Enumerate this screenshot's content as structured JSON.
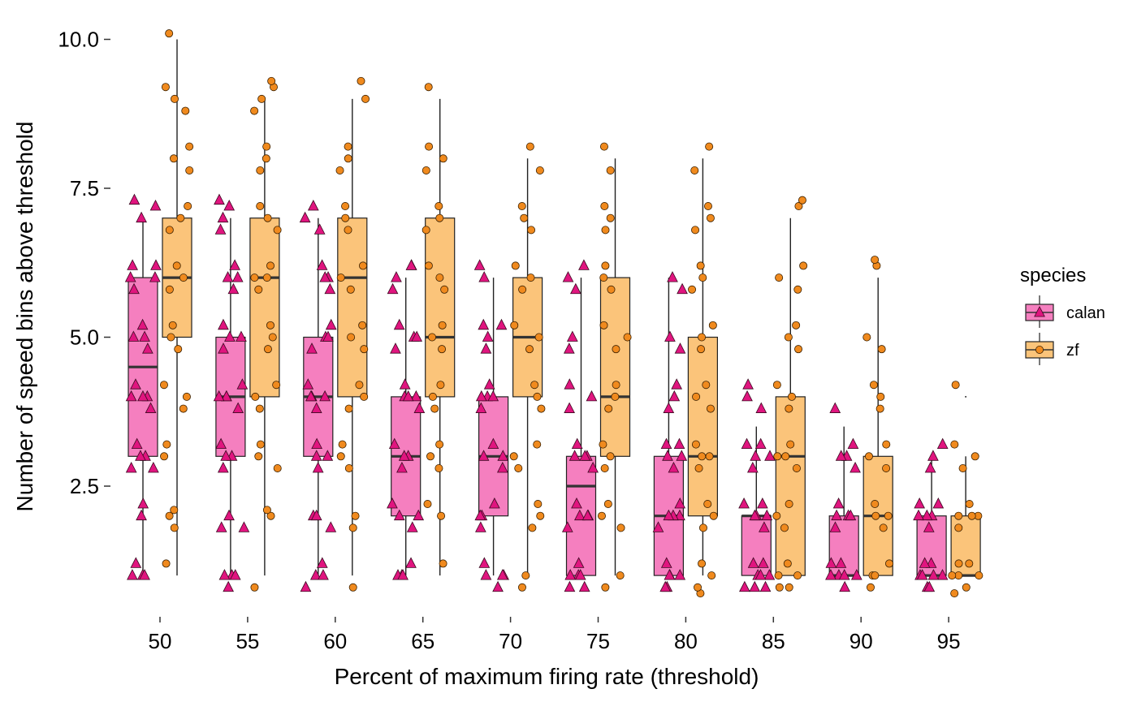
{
  "chart_data": {
    "type": "box",
    "xlabel": "Percent of maximum firing rate (threshold)",
    "ylabel": "Number of speed bins above threshold",
    "categories": [
      "50",
      "55",
      "60",
      "65",
      "70",
      "75",
      "80",
      "85",
      "90",
      "95"
    ],
    "y_ticks": [
      "2.5",
      "5.0",
      "7.5",
      "10.0"
    ],
    "y_tick_values": [
      2.5,
      5.0,
      7.5,
      10.0
    ],
    "ylim": [
      0.6,
      10.4
    ],
    "legend_title": "species",
    "legend_position": "right",
    "grid": false,
    "series": [
      {
        "name": "calan",
        "marker": "triangle",
        "fill": "#f57fbf",
        "point_color": "#e0157f",
        "boxes": [
          {
            "whisker_low": 1,
            "q1": 3,
            "median": 4.5,
            "q3": 6,
            "whisker_high": 7
          },
          {
            "whisker_low": 1,
            "q1": 3,
            "median": 4,
            "q3": 5,
            "whisker_high": 7
          },
          {
            "whisker_low": 1,
            "q1": 3,
            "median": 4,
            "q3": 5,
            "whisker_high": 7
          },
          {
            "whisker_low": 1,
            "q1": 2,
            "median": 3,
            "q3": 4,
            "whisker_high": 6
          },
          {
            "whisker_low": 1,
            "q1": 2,
            "median": 3,
            "q3": 4,
            "whisker_high": 6
          },
          {
            "whisker_low": 1,
            "q1": 1,
            "median": 2.5,
            "q3": 3,
            "whisker_high": 6
          },
          {
            "whisker_low": 1,
            "q1": 1,
            "median": 2,
            "q3": 3,
            "whisker_high": 6
          },
          {
            "whisker_low": 1,
            "q1": 1,
            "median": 2,
            "q3": 2,
            "whisker_high": 3.5
          },
          {
            "whisker_low": 1,
            "q1": 1,
            "median": 1,
            "q3": 2,
            "whisker_high": 3.5
          },
          {
            "whisker_low": 1,
            "q1": 1,
            "median": 1,
            "q3": 2,
            "whisker_high": 3
          }
        ],
        "points": [
          [
            1,
            1,
            1,
            1.2,
            2,
            2.2,
            2.8,
            2.8,
            3,
            3,
            3.2,
            3.8,
            4,
            4,
            4,
            4.2,
            4.8,
            5,
            5,
            5.2,
            5.8,
            6,
            6,
            6.2,
            6.2,
            7,
            7.2,
            7.3
          ],
          [
            0.8,
            1,
            1,
            1,
            1.8,
            1.8,
            2,
            2.8,
            3,
            3,
            3.2,
            3.8,
            4,
            4,
            4,
            4.2,
            4.8,
            5,
            5,
            5.2,
            5.8,
            6,
            6,
            6.2,
            6.8,
            7,
            7.2,
            7.3
          ],
          [
            0.8,
            1,
            1,
            1.2,
            1.8,
            2,
            2,
            2.8,
            3,
            3,
            3.2,
            3.8,
            4,
            4,
            4,
            4.2,
            4.8,
            5,
            5,
            5.2,
            5.8,
            6,
            6,
            6.2,
            6.8,
            7,
            7.2
          ],
          [
            1,
            1,
            1,
            1.2,
            1.8,
            2,
            2,
            2.2,
            2.8,
            3,
            3,
            3.2,
            3.8,
            4,
            4,
            4,
            4.2,
            4.8,
            5,
            5,
            5.2,
            5.8,
            6,
            6.2,
            6.2
          ],
          [
            0.8,
            1,
            1,
            1,
            1.2,
            1.8,
            2,
            2,
            2.2,
            2.8,
            3,
            3,
            3.2,
            3.8,
            4,
            4,
            4,
            4.2,
            4.8,
            5,
            5.2,
            5.2,
            6,
            6.2
          ],
          [
            0.8,
            0.8,
            1,
            1,
            1,
            1.2,
            1.8,
            2,
            2,
            2,
            2.2,
            2.8,
            3,
            3,
            3,
            3.2,
            3.8,
            4,
            4.2,
            4.8,
            5,
            5.8,
            6,
            6.2
          ],
          [
            0.8,
            0.8,
            1,
            1,
            1,
            1.2,
            1.8,
            2,
            2,
            2,
            2.2,
            2.8,
            3,
            3,
            3.2,
            3.2,
            3.8,
            4,
            4.2,
            4.8,
            5,
            5.8,
            6
          ],
          [
            0.8,
            0.8,
            0.8,
            1,
            1,
            1,
            1.2,
            1.2,
            1.8,
            2,
            2,
            2,
            2.2,
            2.2,
            2.8,
            3,
            3,
            3.2,
            3.2,
            3.8,
            4,
            4.2
          ],
          [
            0.8,
            1,
            1,
            1,
            1,
            1.2,
            1.2,
            1.8,
            2,
            2,
            2,
            2.2,
            2.8,
            3,
            3,
            3.2,
            3.8
          ],
          [
            0.8,
            0.8,
            1,
            1,
            1,
            1,
            1.2,
            1.2,
            1.8,
            2,
            2,
            2,
            2.2,
            2.2,
            2.8,
            3,
            3.2
          ]
        ]
      },
      {
        "name": "zf",
        "marker": "circle",
        "fill": "#fbc47a",
        "point_color": "#f08a1e",
        "boxes": [
          {
            "whisker_low": 1,
            "q1": 5,
            "median": 6,
            "q3": 7,
            "whisker_high": 10
          },
          {
            "whisker_low": 1,
            "q1": 4,
            "median": 6,
            "q3": 7,
            "whisker_high": 9
          },
          {
            "whisker_low": 1,
            "q1": 4,
            "median": 6,
            "q3": 7,
            "whisker_high": 9
          },
          {
            "whisker_low": 1,
            "q1": 4,
            "median": 5,
            "q3": 7,
            "whisker_high": 9
          },
          {
            "whisker_low": 1,
            "q1": 4,
            "median": 5,
            "q3": 6,
            "whisker_high": 8
          },
          {
            "whisker_low": 1,
            "q1": 3,
            "median": 4,
            "q3": 6,
            "whisker_high": 8
          },
          {
            "whisker_low": 1,
            "q1": 2,
            "median": 3,
            "q3": 5,
            "whisker_high": 8
          },
          {
            "whisker_low": 1,
            "q1": 1,
            "median": 3,
            "q3": 4,
            "whisker_high": 7
          },
          {
            "whisker_low": 1,
            "q1": 1,
            "median": 2,
            "q3": 3,
            "whisker_high": 6
          },
          {
            "whisker_low": 1,
            "q1": 1,
            "median": 1,
            "q3": 2,
            "whisker_high": 3
          }
        ],
        "outliers": [
          [],
          [],
          [],
          [],
          [],
          [],
          [],
          [],
          [],
          [
            4.0
          ]
        ],
        "points": [
          [
            1.2,
            1.8,
            2,
            2.1,
            3,
            3.2,
            3.8,
            4,
            4.2,
            4.8,
            5,
            5.2,
            5.8,
            6,
            6.2,
            6.8,
            7,
            7.2,
            7.8,
            8,
            8.2,
            8.8,
            9,
            9.2,
            10.1
          ],
          [
            0.8,
            2,
            2.1,
            2.8,
            3,
            3.2,
            3.8,
            4,
            4.2,
            4.8,
            5,
            5.2,
            5.8,
            6,
            6,
            6.2,
            6.8,
            7,
            7.2,
            7.8,
            8,
            8.2,
            8.8,
            9,
            9.2,
            9.3
          ],
          [
            0.8,
            1.8,
            2,
            2.8,
            3,
            3.2,
            3.8,
            4,
            4.2,
            4.8,
            5,
            5.2,
            5.8,
            6,
            6.2,
            6.8,
            7,
            7.2,
            7.8,
            8,
            8.2,
            9,
            9.3
          ],
          [
            1.2,
            2,
            2.2,
            2.8,
            3,
            3.2,
            3.8,
            4,
            4.2,
            4.8,
            5,
            5.2,
            5.8,
            6,
            6.2,
            6.8,
            7,
            7.2,
            7.8,
            8,
            8.2,
            9.2
          ],
          [
            0.8,
            1,
            1.8,
            2,
            2.2,
            2.8,
            3,
            3.2,
            3.8,
            4,
            4.2,
            4.8,
            5,
            5.2,
            5.8,
            6,
            6.2,
            6.8,
            7,
            7.2,
            7.8,
            8.2
          ],
          [
            0.8,
            1,
            1.8,
            2,
            2.2,
            2.8,
            3,
            3.2,
            3.8,
            4,
            4.2,
            4.8,
            5,
            5.2,
            5.8,
            6,
            6.2,
            6.8,
            7,
            7.2,
            7.8,
            8.2
          ],
          [
            0.7,
            0.8,
            1,
            1.2,
            1.8,
            2,
            2.2,
            2.8,
            3,
            3,
            3.2,
            3.8,
            4,
            4.2,
            4.8,
            5,
            5.2,
            5.8,
            6,
            6.2,
            6.8,
            7,
            7.2,
            7.8,
            8.2
          ],
          [
            0.8,
            0.8,
            1,
            1,
            1.2,
            1.8,
            2,
            2.2,
            2.8,
            3,
            3,
            3.2,
            3.8,
            4,
            4.2,
            4.8,
            5,
            5.2,
            5.8,
            6,
            6.2,
            7.2,
            7.3
          ],
          [
            0.8,
            1,
            1,
            1.2,
            1.8,
            2,
            2,
            2.2,
            2.8,
            3,
            3.2,
            3.8,
            4,
            4.2,
            4.8,
            5,
            6.2,
            6.3
          ],
          [
            0.7,
            0.8,
            1,
            1,
            1,
            1.2,
            1.2,
            1.8,
            2,
            2,
            2,
            2.2,
            2.8,
            3,
            3.2,
            4.2
          ]
        ]
      }
    ]
  }
}
